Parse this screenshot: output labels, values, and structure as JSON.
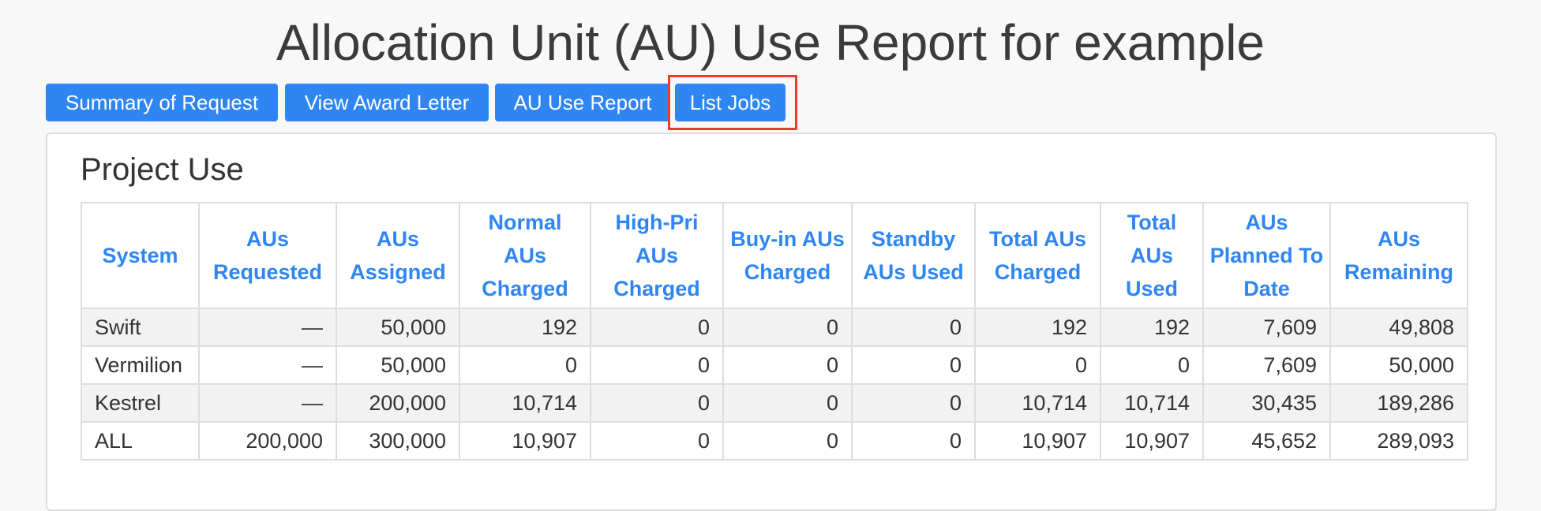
{
  "page": {
    "title": "Allocation Unit (AU) Use Report for example"
  },
  "nav": {
    "buttons": [
      {
        "label": "Summary of Request"
      },
      {
        "label": "View Award Letter"
      },
      {
        "label": "AU Use Report"
      },
      {
        "label": "List Jobs"
      }
    ],
    "highlight_color": "#e0402d",
    "button_color": "#2f86f3"
  },
  "panel": {
    "title": "Project Use"
  },
  "table": {
    "columns": [
      "System",
      "AUs Requested",
      "AUs Assigned",
      "Normal AUs Charged",
      "High-Pri AUs Charged",
      "Buy-in AUs Charged",
      "Standby AUs Used",
      "Total AUs Charged",
      "Total AUs Used",
      "AUs Planned To Date",
      "AUs Remaining"
    ],
    "rows": [
      [
        "Swift",
        "—",
        "50,000",
        "192",
        "0",
        "0",
        "0",
        "192",
        "192",
        "7,609",
        "49,808"
      ],
      [
        "Vermilion",
        "—",
        "50,000",
        "0",
        "0",
        "0",
        "0",
        "0",
        "0",
        "7,609",
        "50,000"
      ],
      [
        "Kestrel",
        "—",
        "200,000",
        "10,714",
        "0",
        "0",
        "0",
        "10,714",
        "10,714",
        "30,435",
        "189,286"
      ],
      [
        "ALL",
        "200,000",
        "300,000",
        "10,907",
        "0",
        "0",
        "0",
        "10,907",
        "10,907",
        "45,652",
        "289,093"
      ]
    ]
  }
}
